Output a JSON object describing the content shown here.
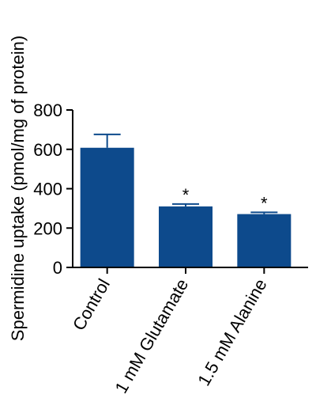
{
  "chart_data": {
    "type": "bar",
    "title": "",
    "xlabel": "",
    "ylabel": "Spermidine uptake (pmol/mg of protein)",
    "ylim": [
      0,
      800
    ],
    "yticks": [
      "0",
      "200",
      "400",
      "600",
      "800"
    ],
    "categories": [
      "Control",
      "1 mM Glutamate",
      "1.5 mM Alanine"
    ],
    "values": [
      608,
      310,
      271
    ],
    "errors": [
      68,
      12,
      9
    ],
    "annotations": [
      "",
      "*",
      "*"
    ],
    "bar_color": "#0d4a8c",
    "grid": false,
    "legend": "none"
  }
}
